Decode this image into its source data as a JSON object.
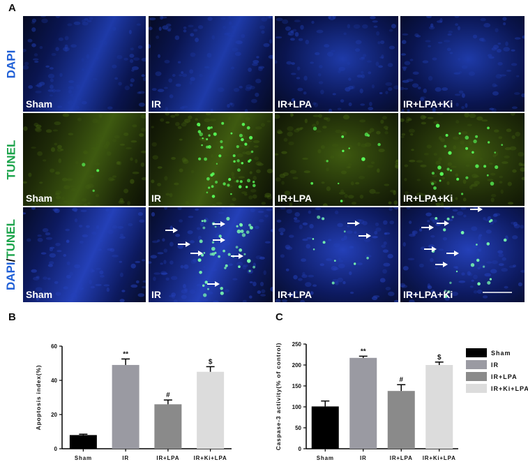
{
  "panel_a": {
    "letter": "A",
    "row_labels": [
      {
        "parts": [
          {
            "text": "DAPI",
            "color": "#1f5fd6"
          }
        ]
      },
      {
        "parts": [
          {
            "text": "TUNEL",
            "color": "#1aa34a"
          }
        ]
      },
      {
        "parts": [
          {
            "text": "DAPI",
            "color": "#1f5fd6"
          },
          {
            "text": "/",
            "color": "#111111"
          },
          {
            "text": "TUNEL",
            "color": "#1aa34a"
          }
        ]
      }
    ],
    "columns": [
      "Sham",
      "IR",
      "IR+LPA",
      "IR+LPA+Ki"
    ],
    "row_colors": {
      "dapi": {
        "base": "#0a1550",
        "mid": "#1e3aa8",
        "dark": "#050a22"
      },
      "tunel": {
        "base": "#1e2a08",
        "mid": "#3e5a10",
        "dark": "#0c1004",
        "dot": "#59ff59"
      },
      "merge": {
        "base": "#0d1a60",
        "mid": "#2440b8",
        "dark": "#060c28",
        "dot": "#7cffb0"
      }
    },
    "tile_dark_side": [
      "left",
      "left",
      "none",
      "none"
    ],
    "tunel_dot_counts": [
      3,
      55,
      12,
      30
    ],
    "merge_dot_counts": [
      0,
      45,
      10,
      22
    ],
    "scale_bar_color": "#ffffff"
  },
  "panel_b": {
    "letter": "B",
    "chart_data": {
      "type": "bar",
      "categories": [
        "Sham",
        "IR",
        "IR+LPA",
        "IR+Ki+LPA"
      ],
      "values": [
        8,
        49,
        26,
        45
      ],
      "errors": [
        0.5,
        3.5,
        2.5,
        3
      ],
      "colors": [
        "#000000",
        "#9a9aa2",
        "#8a8a8a",
        "#dcdcdc"
      ],
      "annotations": [
        "",
        "**",
        "#",
        "$"
      ],
      "ylabel": "Apoptosis index(%)",
      "ylim": [
        0,
        60
      ],
      "yticks": [
        0,
        20,
        40,
        60
      ]
    }
  },
  "panel_c": {
    "letter": "C",
    "chart_data": {
      "type": "bar",
      "categories": [
        "Sham",
        "IR",
        "IR+LPA",
        "IR+Ki+LPA"
      ],
      "values": [
        101,
        217,
        138,
        200
      ],
      "errors": [
        13,
        4,
        15,
        7
      ],
      "colors": [
        "#000000",
        "#9a9aa2",
        "#8a8a8a",
        "#dcdcdc"
      ],
      "annotations": [
        "",
        "**",
        "#",
        "$"
      ],
      "ylabel": "Caspase-3 activity(% of control)",
      "ylim": [
        0,
        250
      ],
      "yticks": [
        0,
        50,
        100,
        150,
        200,
        250
      ]
    }
  },
  "legend": [
    {
      "label": "Sham",
      "color": "#000000"
    },
    {
      "label": "IR",
      "color": "#9a9aa2"
    },
    {
      "label": "IR+LPA",
      "color": "#8a8a8a"
    },
    {
      "label": "IR+Ki+LPA",
      "color": "#dcdcdc"
    }
  ]
}
